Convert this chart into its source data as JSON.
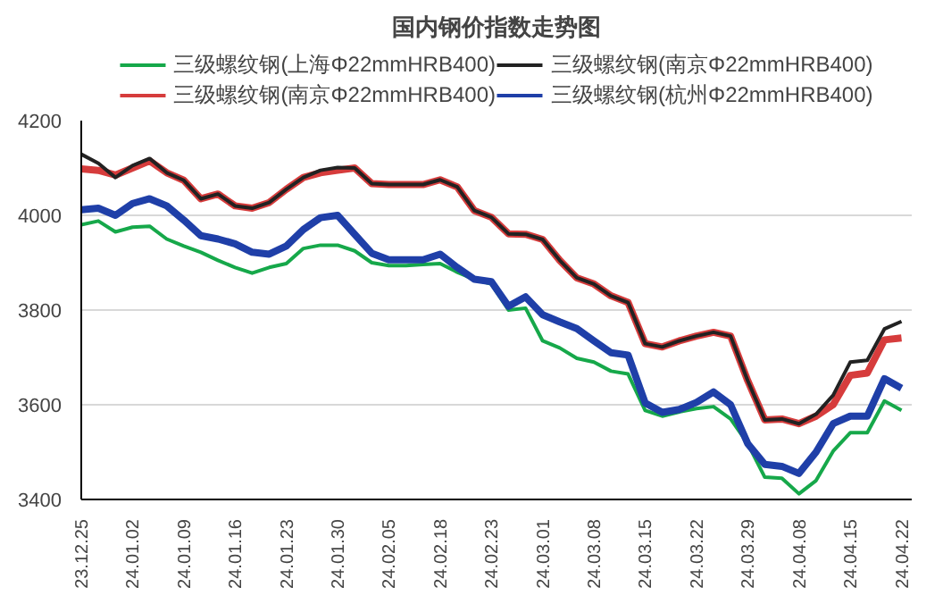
{
  "chart_data": {
    "type": "line",
    "title": "国内钢价指数走势图",
    "categories": [
      "23.12.25",
      null,
      null,
      "24.01.02",
      null,
      null,
      "24.01.09",
      null,
      null,
      "24.01.16",
      null,
      null,
      "24.01.23",
      null,
      null,
      "24.01.30",
      null,
      null,
      "24.02.05",
      null,
      null,
      "24.02.18",
      null,
      null,
      "24.02.23",
      null,
      null,
      "24.03.01",
      null,
      null,
      "24.03.08",
      null,
      null,
      "24.03.15",
      null,
      null,
      "24.03.22",
      null,
      null,
      "24.03.29",
      null,
      null,
      "24.04.08",
      null,
      null,
      "24.04.15",
      null,
      null,
      "24.04.22"
    ],
    "series": [
      {
        "name": "三级螺纹钢(上海Φ22mmHRB400)",
        "color": "#16a84a",
        "values": [
          3980,
          3988,
          3965,
          3975,
          3977,
          3950,
          3935,
          3922,
          3905,
          3890,
          3878,
          3890,
          3898,
          3930,
          3937,
          3937,
          3925,
          3900,
          3894,
          3894,
          3896,
          3898,
          3880,
          3865,
          3855,
          3800,
          3804,
          3735,
          3720,
          3698,
          3690,
          3671,
          3665,
          3588,
          3576,
          3585,
          3592,
          3596,
          3570,
          3518,
          3447,
          3445,
          3412,
          3440,
          3502,
          3541,
          3541,
          3608,
          3588
        ]
      },
      {
        "name": "三级螺纹钢(南京Φ22mmHRB400)",
        "color": "#d63c3c",
        "values": [
          4098,
          4095,
          4085,
          4100,
          4115,
          4090,
          4074,
          4035,
          4045,
          4020,
          4015,
          4027,
          4055,
          4080,
          4090,
          4095,
          4100,
          4067,
          4065,
          4065,
          4065,
          4075,
          4060,
          4010,
          3996,
          3961,
          3960,
          3949,
          3905,
          3868,
          3855,
          3830,
          3816,
          3729,
          3722,
          3735,
          3745,
          3753,
          3745,
          3651,
          3568,
          3570,
          3560,
          3576,
          3600,
          3662,
          3667,
          3737,
          3741
        ]
      },
      {
        "name": "三级螺纹钢(南京Φ22mmHRB400)",
        "color": "#222222",
        "values": [
          4129,
          4110,
          4080,
          4105,
          4120,
          4090,
          4074,
          4035,
          4045,
          4020,
          4015,
          4027,
          4055,
          4080,
          4095,
          4101,
          4100,
          4067,
          4065,
          4065,
          4065,
          4075,
          4060,
          4010,
          3996,
          3961,
          3960,
          3949,
          3905,
          3868,
          3855,
          3830,
          3816,
          3729,
          3722,
          3735,
          3745,
          3753,
          3745,
          3651,
          3568,
          3570,
          3560,
          3580,
          3620,
          3690,
          3694,
          3760,
          3776
        ]
      },
      {
        "name": "三级螺纹钢(杭州Φ22mmHRB400)",
        "color": "#1f3fa8",
        "values": [
          4012,
          4015,
          4000,
          4025,
          4035,
          4020,
          3990,
          3957,
          3950,
          3940,
          3922,
          3918,
          3935,
          3970,
          3995,
          4000,
          3960,
          3920,
          3906,
          3906,
          3906,
          3918,
          3890,
          3865,
          3860,
          3808,
          3828,
          3790,
          3775,
          3761,
          3735,
          3710,
          3705,
          3604,
          3584,
          3590,
          3605,
          3627,
          3600,
          3518,
          3474,
          3470,
          3455,
          3500,
          3560,
          3576,
          3576,
          3655,
          3635
        ]
      }
    ],
    "ylim": [
      3400,
      4200
    ],
    "yticks": [
      3400,
      3600,
      3800,
      4000,
      4200
    ],
    "grid": "y",
    "legend": "top",
    "marker": "none",
    "line_style": "solid"
  }
}
